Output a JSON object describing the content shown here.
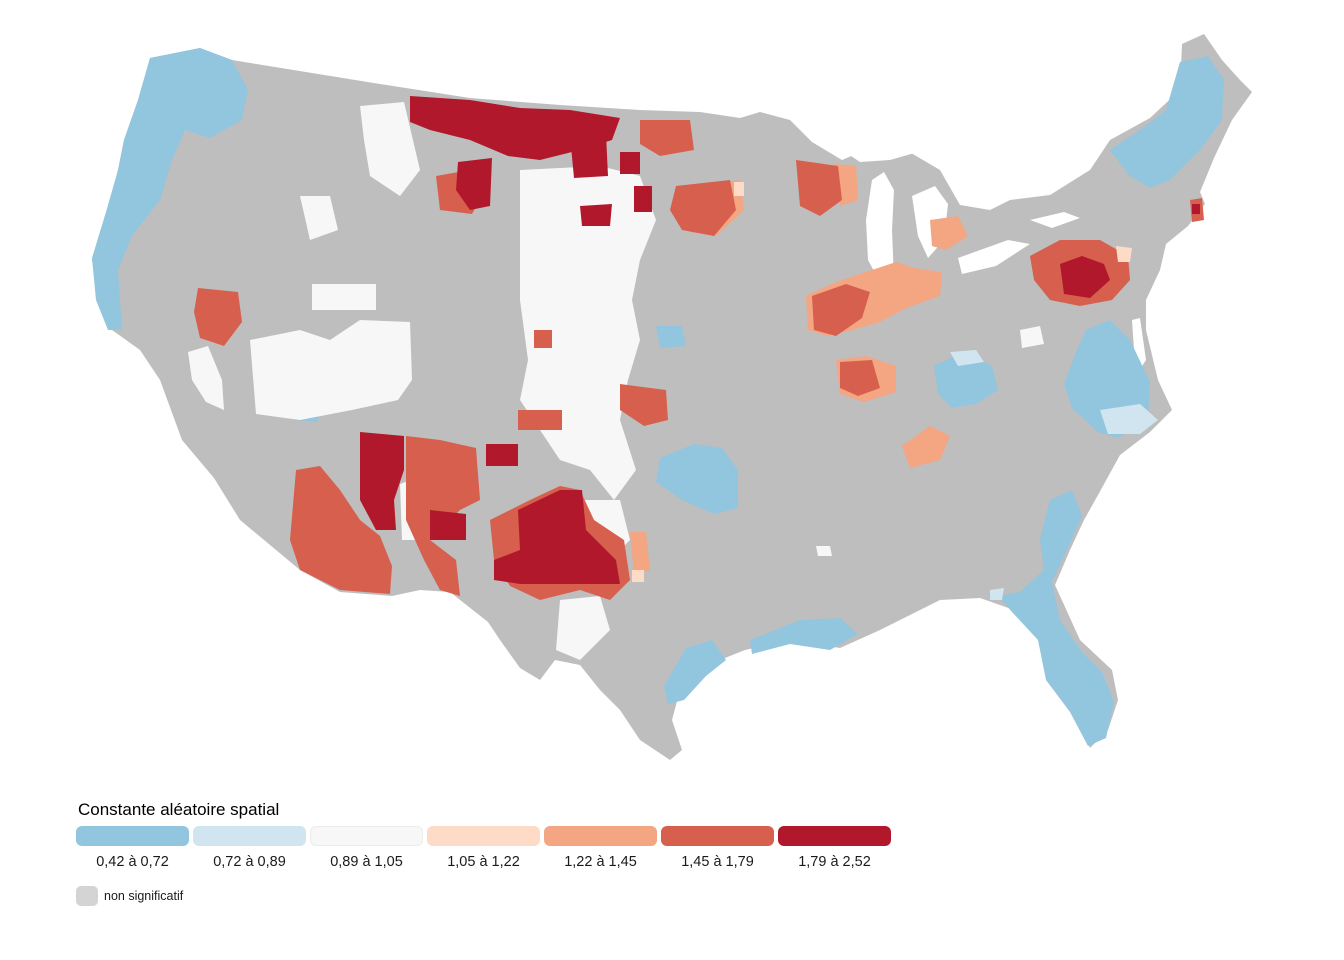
{
  "map": {
    "base_color": "#bebebe",
    "classes": [
      {
        "range": "0,42 à 0,72",
        "color": "#92c5de"
      },
      {
        "range": "0,72 à 0,89",
        "color": "#d1e5f0"
      },
      {
        "range": "0,89 à 1,05",
        "color": "#f7f7f7"
      },
      {
        "range": "1,05 à 1,22",
        "color": "#fddbc7"
      },
      {
        "range": "1,22 à 1,45",
        "color": "#f4a582"
      },
      {
        "range": "1,45 à 1,79",
        "color": "#d6604d"
      },
      {
        "range": "1,79 à 2,52",
        "color": "#b2182b"
      }
    ]
  },
  "legend": {
    "title": "Constante aléatoire spatial",
    "non_significant_label": "non significatif",
    "non_significant_color": "#d4d4d4"
  }
}
